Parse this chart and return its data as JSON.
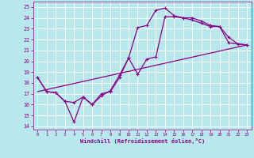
{
  "xlabel": "Windchill (Refroidissement éolien,°C)",
  "xlim": [
    -0.5,
    23.5
  ],
  "ylim": [
    13.7,
    25.5
  ],
  "yticks": [
    14,
    15,
    16,
    17,
    18,
    19,
    20,
    21,
    22,
    23,
    24,
    25
  ],
  "xticks": [
    0,
    1,
    2,
    3,
    4,
    5,
    6,
    7,
    8,
    9,
    10,
    11,
    12,
    13,
    14,
    15,
    16,
    17,
    18,
    19,
    20,
    21,
    22,
    23
  ],
  "bg_color": "#b8e8ec",
  "grid_color": "#ffffff",
  "line_color": "#880088",
  "line1_x": [
    0,
    1,
    2,
    3,
    4,
    5,
    6,
    7,
    8,
    9,
    10,
    11,
    12,
    13,
    14,
    15,
    16,
    17,
    18,
    19,
    20,
    21,
    22,
    23
  ],
  "line1_y": [
    18.5,
    17.2,
    17.1,
    16.3,
    14.4,
    16.7,
    16.0,
    17.0,
    17.2,
    18.5,
    20.3,
    23.1,
    23.3,
    24.7,
    24.9,
    24.2,
    24.0,
    23.8,
    23.5,
    23.2,
    23.2,
    22.2,
    21.6,
    21.5
  ],
  "line2_x": [
    0,
    1,
    2,
    3,
    4,
    5,
    6,
    7,
    8,
    9,
    10,
    11,
    12,
    13,
    14,
    15,
    16,
    17,
    18,
    19,
    20,
    21,
    22,
    23
  ],
  "line2_y": [
    18.5,
    17.2,
    17.1,
    16.3,
    16.2,
    16.7,
    16.0,
    16.8,
    17.3,
    18.7,
    20.3,
    18.8,
    20.2,
    20.4,
    24.1,
    24.1,
    24.0,
    24.0,
    23.7,
    23.3,
    23.2,
    21.7,
    21.6,
    21.5
  ],
  "line3_x": [
    0,
    23
  ],
  "line3_y": [
    17.2,
    21.5
  ]
}
